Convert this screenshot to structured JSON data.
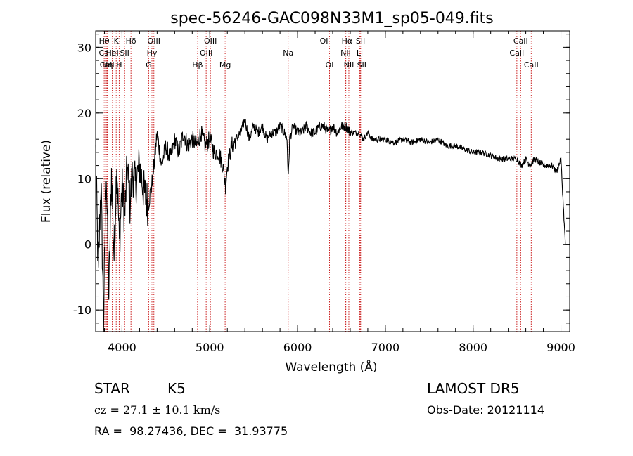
{
  "chart_data": {
    "type": "line",
    "title": "spec-56246-GAC098N33M1_sp05-049.fits",
    "xlabel": "Wavelength (Å)",
    "ylabel": "Flux (relative)",
    "xlim": [
      3700,
      9100
    ],
    "ylim": [
      -13.3,
      32.5
    ],
    "x_ticks": [
      4000,
      5000,
      6000,
      7000,
      8000,
      9000
    ],
    "x_tick_labels": [
      "4000",
      "5000",
      "6000",
      "7000",
      "8000",
      "9000"
    ],
    "y_ticks": [
      -10,
      0,
      10,
      20,
      30
    ],
    "y_tick_labels": [
      "-10",
      "0",
      "10",
      "20",
      "30"
    ],
    "grid": false,
    "line_color": "#000000",
    "marker_color": "#cc2222",
    "spectrum": {
      "x": [
        3700,
        3730,
        3760,
        3790,
        3820,
        3850,
        3880,
        3910,
        3940,
        3970,
        4000,
        4030,
        4060,
        4090,
        4120,
        4150,
        4200,
        4250,
        4300,
        4350,
        4400,
        4450,
        4500,
        4550,
        4600,
        4650,
        4700,
        4750,
        4800,
        4850,
        4900,
        4950,
        5000,
        5050,
        5100,
        5150,
        5180,
        5200,
        5250,
        5300,
        5350,
        5400,
        5450,
        5500,
        5550,
        5600,
        5650,
        5700,
        5750,
        5800,
        5850,
        5880,
        5895,
        5910,
        5950,
        6000,
        6050,
        6100,
        6150,
        6200,
        6250,
        6300,
        6350,
        6400,
        6450,
        6500,
        6550,
        6600,
        6650,
        6700,
        6750,
        6800,
        6850,
        6900,
        6950,
        7000,
        7100,
        7200,
        7300,
        7400,
        7500,
        7600,
        7700,
        7800,
        7900,
        8000,
        8100,
        8200,
        8300,
        8400,
        8500,
        8550,
        8600,
        8650,
        8700,
        8800,
        8900,
        8950,
        9000,
        9050
      ],
      "y": [
        14,
        -5,
        10,
        -12,
        12,
        -8,
        11,
        -2,
        13,
        0,
        9,
        4,
        12,
        6,
        11,
        9,
        12,
        8,
        6,
        10,
        17,
        12,
        15,
        13,
        16,
        14,
        17,
        15,
        16,
        15,
        17,
        15,
        16,
        14,
        14,
        12,
        9,
        12,
        15,
        16,
        17,
        19,
        16,
        18,
        17,
        18,
        16,
        17,
        17,
        18,
        17,
        16,
        10,
        16,
        18,
        17,
        17,
        18,
        17,
        17,
        18,
        18,
        17,
        18,
        17,
        18,
        18,
        17,
        17,
        17,
        16,
        17,
        16,
        16,
        16,
        16,
        15.5,
        16,
        15.5,
        16,
        15.5,
        16,
        15,
        15,
        14.5,
        14,
        14,
        13.5,
        13,
        13,
        13,
        12,
        13,
        12,
        13,
        12,
        12,
        11,
        13,
        0
      ]
    },
    "line_markers": [
      {
        "label": "Hθ",
        "wavelength": 3797,
        "row": 1
      },
      {
        "label": "CaII",
        "wavelength": 3820,
        "row": 2
      },
      {
        "label": "CaII",
        "wavelength": 3830,
        "row": 3
      },
      {
        "label": "HeI",
        "wavelength": 3889,
        "row": 2
      },
      {
        "label": "Hη",
        "wavelength": 3835,
        "row": 3
      },
      {
        "label": "K",
        "wavelength": 3934,
        "row": 1
      },
      {
        "label": "H",
        "wavelength": 3968,
        "row": 3
      },
      {
        "label": "SII",
        "wavelength": 4030,
        "row": 2
      },
      {
        "label": "Hδ",
        "wavelength": 4102,
        "row": 1
      },
      {
        "label": "OIII",
        "wavelength": 4363,
        "row": 1
      },
      {
        "label": "Hγ",
        "wavelength": 4341,
        "row": 2
      },
      {
        "label": "G",
        "wavelength": 4304,
        "row": 3
      },
      {
        "label": "OIII",
        "wavelength": 5007,
        "row": 1
      },
      {
        "label": "OIII",
        "wavelength": 4959,
        "row": 2
      },
      {
        "label": "Hβ",
        "wavelength": 4861,
        "row": 3
      },
      {
        "label": "Mg",
        "wavelength": 5175,
        "row": 3
      },
      {
        "label": "Na",
        "wavelength": 5893,
        "row": 2
      },
      {
        "label": "OI",
        "wavelength": 6300,
        "row": 1
      },
      {
        "label": "OI",
        "wavelength": 6364,
        "row": 3
      },
      {
        "label": "Hα",
        "wavelength": 6563,
        "row": 1
      },
      {
        "label": "NII",
        "wavelength": 6548,
        "row": 2
      },
      {
        "label": "NII",
        "wavelength": 6584,
        "row": 3
      },
      {
        "label": "SII",
        "wavelength": 6717,
        "row": 1
      },
      {
        "label": "Li",
        "wavelength": 6708,
        "row": 2
      },
      {
        "label": "SII",
        "wavelength": 6731,
        "row": 3
      },
      {
        "label": "CaII",
        "wavelength": 8542,
        "row": 1
      },
      {
        "label": "CaII",
        "wavelength": 8498,
        "row": 2
      },
      {
        "label": "CaII",
        "wavelength": 8662,
        "row": 3
      }
    ]
  },
  "footer": {
    "object_class": "STAR",
    "subclass": "K5",
    "redshift_line": "cz = 27.1 ± 10.1 km/s",
    "coords_line": "RA =  98.27436, DEC =  31.93775",
    "survey": "LAMOST DR5",
    "obs_date": "Obs-Date: 20121114"
  }
}
